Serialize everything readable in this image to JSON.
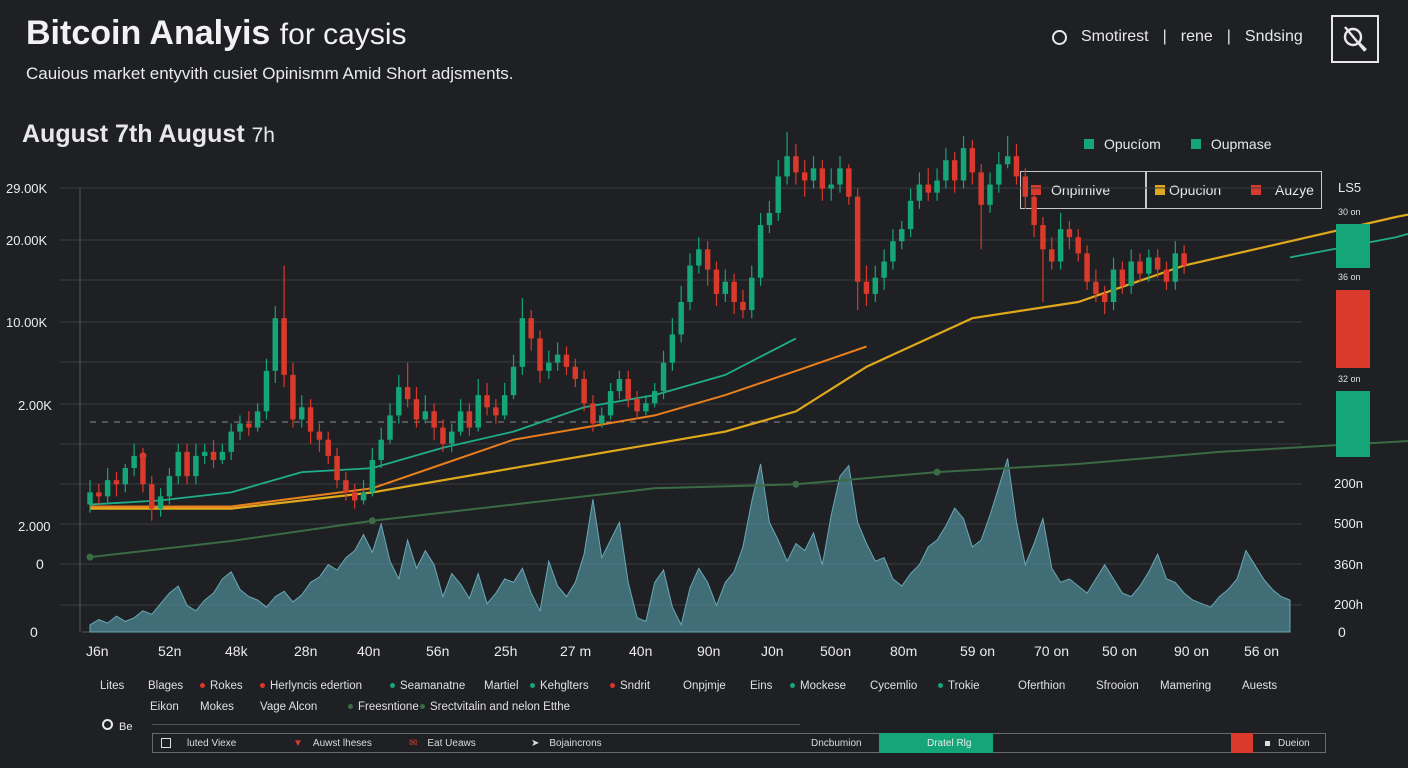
{
  "header": {
    "title": "Bitcoin Analyis",
    "title_suffix": "for caysis",
    "subtitle": "Cauious market entyvith cusiet Opinismm Amid Short adjsments.",
    "date_range_bold": "August 7th  August",
    "date_range_light": "7h",
    "nav": [
      "Smotirest",
      "rene",
      "Sndsing"
    ],
    "nav_sep": "|"
  },
  "legend_top": [
    {
      "label": "Opucíom",
      "color": "#14a677"
    },
    {
      "label": "Oupmase",
      "color": "#14a677"
    }
  ],
  "legend_box": [
    {
      "label": "Onpimive",
      "color": "#d93a2b"
    },
    {
      "label": "Opucion",
      "color": "#e0a81c"
    },
    {
      "label": "Auzye",
      "color": "#d93a2b"
    }
  ],
  "side_panel": {
    "title": "LS5",
    "bars": [
      {
        "label": "30 on",
        "color": "#14a677"
      },
      {
        "label": "36 on",
        "color": "#d93a2b"
      },
      {
        "label": "32 on",
        "color": "#14a677"
      }
    ]
  },
  "colors": {
    "up": "#14a677",
    "down": "#d93a2b",
    "gold": "#e0a81c",
    "teal": "#1fae8a",
    "olive": "#3a6b45",
    "volume": "#4f8a99",
    "orange": "#e87e1c"
  },
  "chart_data": {
    "type": "candlestick",
    "y_axis_labels": [
      "29.00K",
      "20.00K",
      "10.00K",
      "2.00K",
      "2.000",
      "0",
      "0"
    ],
    "right_axis_labels": [
      "200n",
      "500n",
      "360n",
      "200h",
      "0"
    ],
    "x_labels": [
      "J6n",
      "52n",
      "48k",
      "28n",
      "40n",
      "56n",
      "25h",
      "27 m",
      "40n",
      "90n",
      "J0n",
      "50on",
      "80m",
      "59 on",
      "70 on",
      "50 on",
      "90 on",
      "56 on"
    ],
    "price_range": [
      0,
      10
    ],
    "volume_range": [
      0,
      1
    ],
    "candles": [
      {
        "o": 1.0,
        "c": 1.3,
        "h": 1.6,
        "l": 0.8
      },
      {
        "o": 1.3,
        "c": 1.2,
        "h": 1.5,
        "l": 1.0
      },
      {
        "o": 1.2,
        "c": 1.6,
        "h": 1.9,
        "l": 1.0
      },
      {
        "o": 1.6,
        "c": 1.5,
        "h": 1.8,
        "l": 1.2
      },
      {
        "o": 1.5,
        "c": 1.9,
        "h": 2.0,
        "l": 1.3
      },
      {
        "o": 1.9,
        "c": 2.2,
        "h": 2.5,
        "l": 1.7
      },
      {
        "o": 2.2,
        "c": 1.5,
        "h": 2.4,
        "l": 1.3
      },
      {
        "o": 1.5,
        "c": 0.9,
        "h": 1.7,
        "l": 0.6
      },
      {
        "o": 0.9,
        "c": 1.2,
        "h": 1.4,
        "l": 0.7
      },
      {
        "o": 1.2,
        "c": 1.7,
        "h": 1.9,
        "l": 1.0
      },
      {
        "o": 1.7,
        "c": 2.3,
        "h": 2.5,
        "l": 1.5
      },
      {
        "o": 2.3,
        "c": 1.7,
        "h": 2.5,
        "l": 1.5
      },
      {
        "o": 1.7,
        "c": 2.2,
        "h": 2.5,
        "l": 1.5
      },
      {
        "o": 2.2,
        "c": 2.3,
        "h": 2.5,
        "l": 2.0
      },
      {
        "o": 2.3,
        "c": 2.1,
        "h": 2.6,
        "l": 1.9
      },
      {
        "o": 2.1,
        "c": 2.3,
        "h": 2.5,
        "l": 2.0
      },
      {
        "o": 2.3,
        "c": 2.8,
        "h": 3.0,
        "l": 2.1
      },
      {
        "o": 2.8,
        "c": 3.0,
        "h": 3.2,
        "l": 2.6
      },
      {
        "o": 3.0,
        "c": 2.9,
        "h": 3.3,
        "l": 2.7
      },
      {
        "o": 2.9,
        "c": 3.3,
        "h": 3.5,
        "l": 2.8
      },
      {
        "o": 3.3,
        "c": 4.3,
        "h": 4.6,
        "l": 3.1
      },
      {
        "o": 4.3,
        "c": 5.6,
        "h": 5.9,
        "l": 4.0
      },
      {
        "o": 5.6,
        "c": 4.2,
        "h": 6.9,
        "l": 3.9
      },
      {
        "o": 4.2,
        "c": 3.1,
        "h": 4.5,
        "l": 2.9
      },
      {
        "o": 3.1,
        "c": 3.4,
        "h": 3.7,
        "l": 2.9
      },
      {
        "o": 3.4,
        "c": 2.8,
        "h": 3.6,
        "l": 2.5
      },
      {
        "o": 2.8,
        "c": 2.6,
        "h": 3.0,
        "l": 2.3
      },
      {
        "o": 2.6,
        "c": 2.2,
        "h": 2.8,
        "l": 2.0
      },
      {
        "o": 2.2,
        "c": 1.6,
        "h": 2.4,
        "l": 1.4
      },
      {
        "o": 1.6,
        "c": 1.3,
        "h": 1.8,
        "l": 1.1
      },
      {
        "o": 1.3,
        "c": 1.1,
        "h": 1.5,
        "l": 0.9
      },
      {
        "o": 1.1,
        "c": 1.3,
        "h": 1.6,
        "l": 1.0
      },
      {
        "o": 1.3,
        "c": 2.1,
        "h": 2.4,
        "l": 1.2
      },
      {
        "o": 2.1,
        "c": 2.6,
        "h": 2.9,
        "l": 1.9
      },
      {
        "o": 2.6,
        "c": 3.2,
        "h": 3.5,
        "l": 2.5
      },
      {
        "o": 3.2,
        "c": 3.9,
        "h": 4.2,
        "l": 3.0
      },
      {
        "o": 3.9,
        "c": 3.6,
        "h": 4.5,
        "l": 3.4
      },
      {
        "o": 3.6,
        "c": 3.1,
        "h": 3.9,
        "l": 2.9
      },
      {
        "o": 3.1,
        "c": 3.3,
        "h": 3.7,
        "l": 3.0
      },
      {
        "o": 3.3,
        "c": 2.9,
        "h": 3.5,
        "l": 2.6
      },
      {
        "o": 2.9,
        "c": 2.5,
        "h": 3.1,
        "l": 2.3
      },
      {
        "o": 2.5,
        "c": 2.8,
        "h": 3.0,
        "l": 2.3
      },
      {
        "o": 2.8,
        "c": 3.3,
        "h": 3.6,
        "l": 2.7
      },
      {
        "o": 3.3,
        "c": 2.9,
        "h": 3.5,
        "l": 2.7
      },
      {
        "o": 2.9,
        "c": 3.7,
        "h": 4.1,
        "l": 2.8
      },
      {
        "o": 3.7,
        "c": 3.4,
        "h": 4.0,
        "l": 3.2
      },
      {
        "o": 3.4,
        "c": 3.2,
        "h": 3.6,
        "l": 3.0
      },
      {
        "o": 3.2,
        "c": 3.7,
        "h": 4.0,
        "l": 3.1
      },
      {
        "o": 3.7,
        "c": 4.4,
        "h": 4.7,
        "l": 3.6
      },
      {
        "o": 4.4,
        "c": 5.6,
        "h": 6.1,
        "l": 4.2
      },
      {
        "o": 5.6,
        "c": 5.1,
        "h": 5.8,
        "l": 4.8
      },
      {
        "o": 5.1,
        "c": 4.3,
        "h": 5.3,
        "l": 4.0
      },
      {
        "o": 4.3,
        "c": 4.5,
        "h": 4.8,
        "l": 4.1
      },
      {
        "o": 4.5,
        "c": 4.7,
        "h": 5.0,
        "l": 4.3
      },
      {
        "o": 4.7,
        "c": 4.4,
        "h": 4.9,
        "l": 4.2
      },
      {
        "o": 4.4,
        "c": 4.1,
        "h": 4.6,
        "l": 3.9
      },
      {
        "o": 4.1,
        "c": 3.5,
        "h": 4.3,
        "l": 3.3
      },
      {
        "o": 3.5,
        "c": 3.0,
        "h": 3.7,
        "l": 2.8
      },
      {
        "o": 3.0,
        "c": 3.2,
        "h": 3.4,
        "l": 2.9
      },
      {
        "o": 3.2,
        "c": 3.8,
        "h": 4.0,
        "l": 3.1
      },
      {
        "o": 3.8,
        "c": 4.1,
        "h": 4.3,
        "l": 3.6
      },
      {
        "o": 4.1,
        "c": 3.6,
        "h": 4.3,
        "l": 3.4
      },
      {
        "o": 3.6,
        "c": 3.3,
        "h": 3.8,
        "l": 3.1
      },
      {
        "o": 3.3,
        "c": 3.5,
        "h": 3.7,
        "l": 3.2
      },
      {
        "o": 3.5,
        "c": 3.8,
        "h": 4.0,
        "l": 3.4
      },
      {
        "o": 3.8,
        "c": 4.5,
        "h": 4.8,
        "l": 3.6
      },
      {
        "o": 4.5,
        "c": 5.2,
        "h": 5.6,
        "l": 4.3
      },
      {
        "o": 5.2,
        "c": 6.0,
        "h": 6.4,
        "l": 5.0
      },
      {
        "o": 6.0,
        "c": 6.9,
        "h": 7.2,
        "l": 5.8
      },
      {
        "o": 6.9,
        "c": 7.3,
        "h": 7.6,
        "l": 6.7
      },
      {
        "o": 7.3,
        "c": 6.8,
        "h": 7.5,
        "l": 6.4
      },
      {
        "o": 6.8,
        "c": 6.2,
        "h": 7.0,
        "l": 5.9
      },
      {
        "o": 6.2,
        "c": 6.5,
        "h": 6.8,
        "l": 6.0
      },
      {
        "o": 6.5,
        "c": 6.0,
        "h": 6.7,
        "l": 5.7
      },
      {
        "o": 6.0,
        "c": 5.8,
        "h": 6.3,
        "l": 5.6
      },
      {
        "o": 5.8,
        "c": 6.6,
        "h": 6.9,
        "l": 5.6
      },
      {
        "o": 6.6,
        "c": 7.9,
        "h": 8.2,
        "l": 6.4
      },
      {
        "o": 7.9,
        "c": 8.2,
        "h": 8.5,
        "l": 7.7
      },
      {
        "o": 8.2,
        "c": 9.1,
        "h": 9.5,
        "l": 8.0
      },
      {
        "o": 9.1,
        "c": 9.6,
        "h": 10.2,
        "l": 8.9
      },
      {
        "o": 9.6,
        "c": 9.2,
        "h": 9.9,
        "l": 8.9
      },
      {
        "o": 9.2,
        "c": 9.0,
        "h": 9.5,
        "l": 8.6
      },
      {
        "o": 9.0,
        "c": 9.3,
        "h": 9.6,
        "l": 8.8
      },
      {
        "o": 9.3,
        "c": 8.8,
        "h": 9.5,
        "l": 8.5
      },
      {
        "o": 8.8,
        "c": 8.9,
        "h": 9.3,
        "l": 8.5
      },
      {
        "o": 8.9,
        "c": 9.3,
        "h": 9.6,
        "l": 8.7
      },
      {
        "o": 9.3,
        "c": 8.6,
        "h": 9.4,
        "l": 8.4
      },
      {
        "o": 8.6,
        "c": 6.5,
        "h": 8.8,
        "l": 5.8
      },
      {
        "o": 6.5,
        "c": 6.2,
        "h": 6.9,
        "l": 5.9
      },
      {
        "o": 6.2,
        "c": 6.6,
        "h": 6.9,
        "l": 6.0
      },
      {
        "o": 6.6,
        "c": 7.0,
        "h": 7.3,
        "l": 6.3
      },
      {
        "o": 7.0,
        "c": 7.5,
        "h": 7.8,
        "l": 6.8
      },
      {
        "o": 7.5,
        "c": 7.8,
        "h": 8.0,
        "l": 7.3
      },
      {
        "o": 7.8,
        "c": 8.5,
        "h": 8.8,
        "l": 7.6
      },
      {
        "o": 8.5,
        "c": 8.9,
        "h": 9.2,
        "l": 8.3
      },
      {
        "o": 8.9,
        "c": 8.7,
        "h": 9.3,
        "l": 8.5
      },
      {
        "o": 8.7,
        "c": 9.0,
        "h": 9.3,
        "l": 8.5
      },
      {
        "o": 9.0,
        "c": 9.5,
        "h": 9.8,
        "l": 8.8
      },
      {
        "o": 9.5,
        "c": 9.0,
        "h": 9.7,
        "l": 8.7
      },
      {
        "o": 9.0,
        "c": 9.8,
        "h": 10.1,
        "l": 8.8
      },
      {
        "o": 9.8,
        "c": 9.2,
        "h": 10.0,
        "l": 8.9
      },
      {
        "o": 9.2,
        "c": 8.4,
        "h": 9.4,
        "l": 7.3
      },
      {
        "o": 8.4,
        "c": 8.9,
        "h": 9.2,
        "l": 8.2
      },
      {
        "o": 8.9,
        "c": 9.4,
        "h": 9.7,
        "l": 8.7
      },
      {
        "o": 9.4,
        "c": 9.6,
        "h": 10.1,
        "l": 9.3
      },
      {
        "o": 9.6,
        "c": 9.1,
        "h": 9.9,
        "l": 8.9
      },
      {
        "o": 9.1,
        "c": 8.6,
        "h": 9.3,
        "l": 8.3
      },
      {
        "o": 8.6,
        "c": 7.9,
        "h": 8.8,
        "l": 7.6
      },
      {
        "o": 7.9,
        "c": 7.3,
        "h": 8.1,
        "l": 6.0
      },
      {
        "o": 7.3,
        "c": 7.0,
        "h": 7.6,
        "l": 6.8
      },
      {
        "o": 7.0,
        "c": 7.8,
        "h": 8.2,
        "l": 6.8
      },
      {
        "o": 7.8,
        "c": 7.6,
        "h": 8.0,
        "l": 7.3
      },
      {
        "o": 7.6,
        "c": 7.2,
        "h": 7.8,
        "l": 7.0
      },
      {
        "o": 7.2,
        "c": 6.5,
        "h": 7.4,
        "l": 6.3
      },
      {
        "o": 6.5,
        "c": 6.2,
        "h": 6.8,
        "l": 6.0
      },
      {
        "o": 6.2,
        "c": 6.0,
        "h": 6.4,
        "l": 5.7
      },
      {
        "o": 6.0,
        "c": 6.8,
        "h": 7.1,
        "l": 5.8
      },
      {
        "o": 6.8,
        "c": 6.4,
        "h": 7.0,
        "l": 6.2
      },
      {
        "o": 6.4,
        "c": 7.0,
        "h": 7.3,
        "l": 6.2
      },
      {
        "o": 7.0,
        "c": 6.7,
        "h": 7.2,
        "l": 6.5
      },
      {
        "o": 6.7,
        "c": 7.1,
        "h": 7.3,
        "l": 6.5
      },
      {
        "o": 7.1,
        "c": 6.8,
        "h": 7.3,
        "l": 6.6
      },
      {
        "o": 6.8,
        "c": 6.5,
        "h": 7.0,
        "l": 6.3
      },
      {
        "o": 6.5,
        "c": 7.2,
        "h": 7.5,
        "l": 6.3
      },
      {
        "o": 7.2,
        "c": 6.9,
        "h": 7.4,
        "l": 6.7
      }
    ],
    "volume": [
      0.04,
      0.07,
      0.05,
      0.09,
      0.06,
      0.08,
      0.12,
      0.1,
      0.16,
      0.22,
      0.26,
      0.15,
      0.12,
      0.18,
      0.22,
      0.3,
      0.34,
      0.24,
      0.2,
      0.18,
      0.14,
      0.2,
      0.23,
      0.17,
      0.21,
      0.28,
      0.31,
      0.38,
      0.35,
      0.42,
      0.46,
      0.55,
      0.45,
      0.61,
      0.4,
      0.3,
      0.52,
      0.36,
      0.46,
      0.38,
      0.2,
      0.33,
      0.27,
      0.19,
      0.33,
      0.16,
      0.22,
      0.3,
      0.28,
      0.36,
      0.22,
      0.12,
      0.4,
      0.26,
      0.2,
      0.28,
      0.44,
      0.75,
      0.42,
      0.52,
      0.62,
      0.28,
      0.08,
      0.06,
      0.28,
      0.35,
      0.14,
      0.04,
      0.25,
      0.36,
      0.28,
      0.15,
      0.28,
      0.34,
      0.48,
      0.74,
      0.95,
      0.62,
      0.52,
      0.4,
      0.5,
      0.46,
      0.56,
      0.38,
      0.66,
      0.88,
      0.94,
      0.62,
      0.5,
      0.4,
      0.42,
      0.3,
      0.26,
      0.33,
      0.38,
      0.48,
      0.52,
      0.6,
      0.7,
      0.64,
      0.48,
      0.52,
      0.66,
      0.82,
      0.98,
      0.62,
      0.38,
      0.5,
      0.64,
      0.36,
      0.28,
      0.3,
      0.26,
      0.22,
      0.3,
      0.38,
      0.3,
      0.22,
      0.2,
      0.26,
      0.34,
      0.44,
      0.3,
      0.28,
      0.22,
      0.18,
      0.16,
      0.14,
      0.2,
      0.24,
      0.3,
      0.46,
      0.38,
      0.3,
      0.24,
      0.2,
      0.18
    ],
    "ma_gold": [
      [
        0,
        0.9
      ],
      [
        16,
        0.9
      ],
      [
        32,
        1.3
      ],
      [
        48,
        1.9
      ],
      [
        64,
        2.5
      ],
      [
        72,
        2.8
      ],
      [
        80,
        3.3
      ],
      [
        88,
        4.4
      ],
      [
        100,
        5.6
      ],
      [
        112,
        6.0
      ],
      [
        124,
        6.9
      ],
      [
        136,
        7.5
      ],
      [
        148,
        8.1
      ],
      [
        160,
        8.6
      ]
    ],
    "ma_orange": [
      [
        0,
        0.95
      ],
      [
        16,
        0.95
      ],
      [
        32,
        1.4
      ],
      [
        40,
        2.0
      ],
      [
        48,
        2.6
      ],
      [
        56,
        2.9
      ],
      [
        64,
        3.2
      ],
      [
        72,
        3.7
      ],
      [
        80,
        4.3
      ],
      [
        88,
        4.9
      ]
    ],
    "ma_teal": [
      [
        0,
        1.0
      ],
      [
        8,
        1.1
      ],
      [
        16,
        1.3
      ],
      [
        24,
        1.8
      ],
      [
        32,
        1.9
      ],
      [
        40,
        2.4
      ],
      [
        48,
        2.8
      ],
      [
        56,
        3.4
      ],
      [
        64,
        3.7
      ],
      [
        72,
        4.2
      ],
      [
        80,
        5.1
      ]
    ],
    "ma_teal_right": [
      [
        136,
        7.1
      ],
      [
        148,
        7.6
      ],
      [
        160,
        8.3
      ],
      [
        168,
        8.9
      ],
      [
        176,
        9.5
      ]
    ],
    "ma_olive": [
      [
        0,
        -0.3
      ],
      [
        16,
        0.1
      ],
      [
        32,
        0.6
      ],
      [
        48,
        1.0
      ],
      [
        56,
        1.2
      ],
      [
        64,
        1.4
      ],
      [
        80,
        1.5
      ],
      [
        96,
        1.8
      ],
      [
        112,
        2.0
      ],
      [
        128,
        2.3
      ],
      [
        144,
        2.5
      ],
      [
        160,
        2.7
      ],
      [
        176,
        2.9
      ]
    ],
    "red_projection": [
      [
        158,
        5.2
      ],
      [
        166,
        4.0
      ],
      [
        174,
        2.6
      ],
      [
        180,
        1.8
      ]
    ],
    "marker_point": {
      "x": 6,
      "price": 2.2
    }
  },
  "legend_rows": [
    [
      {
        "label": "Lites",
        "dot": null
      },
      {
        "label": "Blages",
        "dot": null
      },
      {
        "label": "Rokes",
        "dot": "#d93a2b"
      },
      {
        "label": "Herlyncis edertion",
        "dot": "#d93a2b"
      },
      {
        "label": "Seamanatne",
        "dot": "#14a677"
      },
      {
        "label": "Martiel",
        "dot": null
      },
      {
        "label": "Kehglters",
        "dot": "#14a677"
      },
      {
        "label": "Sndrit",
        "dot": "#d93a2b"
      },
      {
        "label": "Onpjmje",
        "dot": null
      },
      {
        "label": "Eins",
        "dot": null
      },
      {
        "label": "Mockese",
        "dot": "#14a677"
      },
      {
        "label": "Cycemlio",
        "dot": null
      },
      {
        "label": "Trokie",
        "dot": "#14a677"
      },
      {
        "label": "Oferthion",
        "dot": null
      },
      {
        "label": "Sfrooion",
        "dot": null
      },
      {
        "label": "Mamering",
        "dot": null
      },
      {
        "label": "Auests",
        "dot": null
      }
    ],
    [
      {
        "label": "Eikon",
        "dot": null
      },
      {
        "label": "Mokes",
        "dot": null
      },
      {
        "label": "Vage Alcon",
        "dot": null
      },
      {
        "label": "Freesntione",
        "dot": "#3a6b45"
      },
      {
        "label": "Srectvitalin and nelon Etthe",
        "dot": "#3a6b45"
      }
    ]
  ],
  "legend_extra": "Be",
  "footer": {
    "items": [
      "luted Viexe",
      "Auwst lheses",
      "Eat Ueaws",
      "Bojaincrons"
    ],
    "right_label": "Dncbumion",
    "green_label": "Dratel Rlg",
    "end_label": "Dueion"
  }
}
